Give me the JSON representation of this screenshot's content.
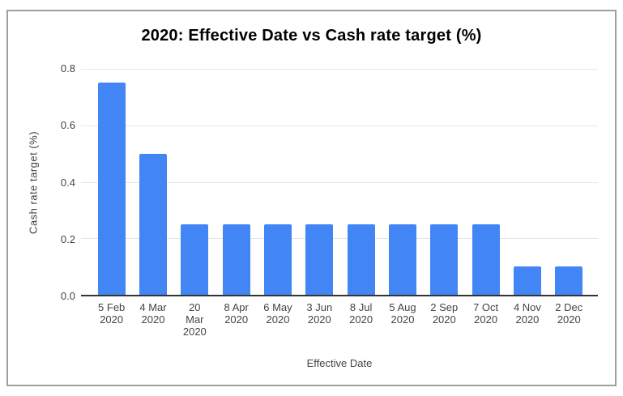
{
  "frame": {
    "background": "#ffffff",
    "border_color": "#9e9e9e"
  },
  "chart_data": {
    "type": "bar",
    "title": "2020: Effective Date vs Cash rate target (%)",
    "xlabel": "Effective Date",
    "ylabel": "Cash rate target (%)",
    "categories": [
      "5 Feb 2020",
      "4 Mar 2020",
      "20 Mar 2020",
      "8 Apr 2020",
      "6 May 2020",
      "3 Jun 2020",
      "8 Jul 2020",
      "5 Aug 2020",
      "2 Sep 2020",
      "7 Oct 2020",
      "4 Nov 2020",
      "2 Dec 2020"
    ],
    "category_lines": [
      [
        "5 Feb",
        "2020"
      ],
      [
        "4 Mar",
        "2020"
      ],
      [
        "20",
        "Mar",
        "2020"
      ],
      [
        "8 Apr",
        "2020"
      ],
      [
        "6 May",
        "2020"
      ],
      [
        "3 Jun",
        "2020"
      ],
      [
        "8 Jul",
        "2020"
      ],
      [
        "5 Aug",
        "2020"
      ],
      [
        "2 Sep",
        "2020"
      ],
      [
        "7 Oct",
        "2020"
      ],
      [
        "4 Nov",
        "2020"
      ],
      [
        "2 Dec",
        "2020"
      ]
    ],
    "values": [
      0.75,
      0.5,
      0.25,
      0.25,
      0.25,
      0.25,
      0.25,
      0.25,
      0.25,
      0.25,
      0.1,
      0.1
    ],
    "ylim": [
      0,
      0.8
    ],
    "ytick_labels": [
      "0.0",
      "0.2",
      "0.4",
      "0.6",
      "0.8"
    ],
    "ytick_values": [
      0,
      0.2,
      0.4,
      0.6,
      0.8
    ],
    "grid": true,
    "legend_position": "none",
    "bar_color": "#4285f4",
    "gridline_color": "#e6e6e6",
    "axis_line_color": "#333333",
    "text_color": "#444444",
    "title_color": "#000000"
  }
}
